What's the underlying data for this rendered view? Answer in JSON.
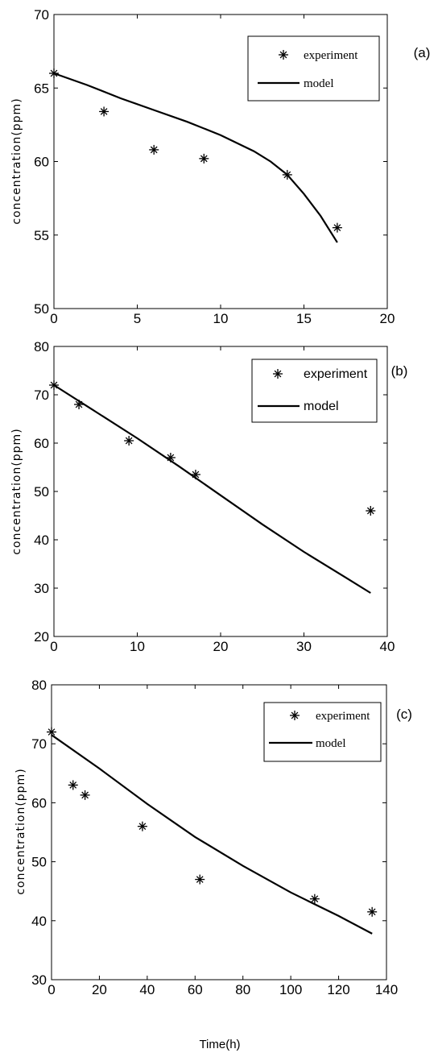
{
  "chart_data": [
    {
      "type": "line",
      "panel_label": "(a)",
      "ylabel": "concentration(ppm)",
      "xlabel": "",
      "xlim": [
        0,
        20
      ],
      "ylim": [
        50,
        70
      ],
      "xticks": [
        0,
        5,
        10,
        15,
        20
      ],
      "yticks": [
        50,
        55,
        60,
        65,
        70
      ],
      "legend": {
        "position": "top-right",
        "entries": [
          "experiment",
          "model"
        ]
      },
      "series": [
        {
          "name": "experiment",
          "kind": "scatter",
          "marker": "star",
          "x": [
            0,
            3,
            6,
            9,
            14,
            17
          ],
          "y": [
            66.0,
            63.4,
            60.8,
            60.2,
            59.1,
            55.5
          ]
        },
        {
          "name": "model",
          "kind": "line",
          "x": [
            0,
            2,
            4,
            6,
            8,
            10,
            12,
            13,
            14,
            15,
            16,
            17
          ],
          "y": [
            66.0,
            65.2,
            64.3,
            63.5,
            62.7,
            61.8,
            60.7,
            60.0,
            59.1,
            57.8,
            56.3,
            54.5
          ]
        }
      ]
    },
    {
      "type": "line",
      "panel_label": "(b)",
      "ylabel": "concentration(ppm)",
      "xlabel": "",
      "xlim": [
        0,
        40
      ],
      "ylim": [
        20,
        80
      ],
      "xticks": [
        0,
        10,
        20,
        30,
        40
      ],
      "yticks": [
        20,
        30,
        40,
        50,
        60,
        70,
        80
      ],
      "legend": {
        "position": "top-right",
        "entries": [
          "experiment",
          "model"
        ]
      },
      "series": [
        {
          "name": "experiment",
          "kind": "scatter",
          "marker": "star",
          "x": [
            0,
            3,
            9,
            14,
            17,
            38
          ],
          "y": [
            72,
            68,
            60.5,
            57,
            53.5,
            46
          ]
        },
        {
          "name": "model",
          "kind": "line",
          "x": [
            0,
            5,
            10,
            15,
            20,
            25,
            30,
            35,
            38
          ],
          "y": [
            72,
            66.5,
            61,
            55.2,
            49.2,
            43.2,
            37.5,
            32.2,
            29
          ]
        }
      ]
    },
    {
      "type": "line",
      "panel_label": "(c)",
      "ylabel": "concentration(ppm)",
      "xlabel": "Time(h)",
      "xlim": [
        0,
        140
      ],
      "ylim": [
        30,
        80
      ],
      "xticks": [
        0,
        20,
        40,
        60,
        80,
        100,
        120,
        140
      ],
      "yticks": [
        30,
        40,
        50,
        60,
        70,
        80
      ],
      "legend": {
        "position": "top-right",
        "entries": [
          "experiment",
          "model"
        ]
      },
      "series": [
        {
          "name": "experiment",
          "kind": "scatter",
          "marker": "star",
          "x": [
            0,
            9,
            14,
            38,
            62,
            110,
            134
          ],
          "y": [
            72,
            63,
            61.3,
            56,
            47,
            43.7,
            41.5
          ]
        },
        {
          "name": "model",
          "kind": "line",
          "x": [
            0,
            20,
            40,
            60,
            80,
            100,
            120,
            134
          ],
          "y": [
            71.5,
            65.8,
            59.8,
            54.2,
            49.3,
            44.8,
            40.8,
            37.8
          ]
        }
      ]
    }
  ]
}
